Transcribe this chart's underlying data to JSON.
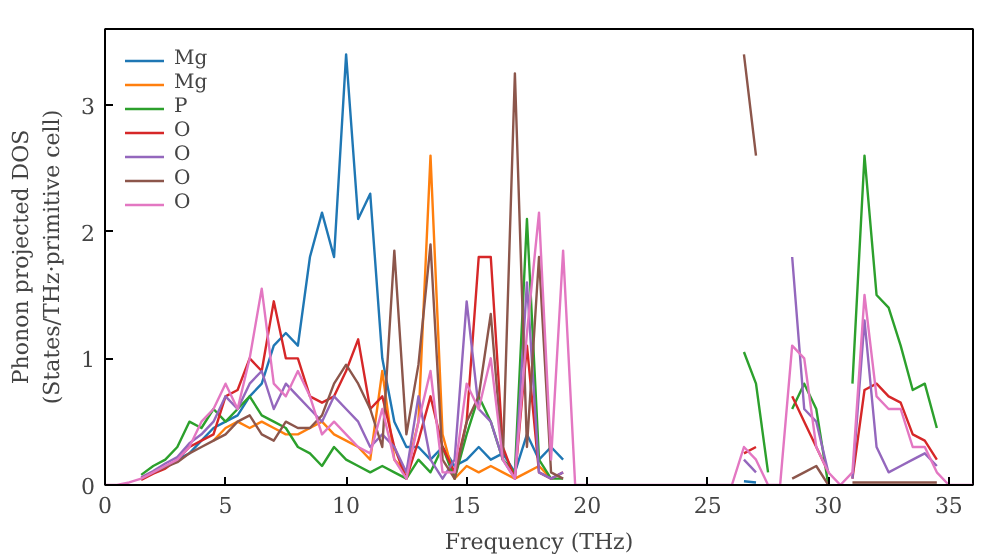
{
  "chart_data": {
    "type": "line",
    "xlabel": "Frequency (THz)",
    "ylabel": "Phonon projected DOS\n(States/THz·primitive cell)",
    "x": [
      0,
      0.5,
      1,
      1.5,
      2,
      2.5,
      3,
      3.5,
      4,
      4.5,
      5,
      5.5,
      6,
      6.5,
      7,
      7.5,
      8,
      8.5,
      9,
      9.5,
      10,
      10.5,
      11,
      11.5,
      12,
      12.5,
      13,
      13.5,
      14,
      14.5,
      15,
      15.5,
      16,
      16.5,
      17,
      17.5,
      18,
      18.5,
      19,
      19.5,
      20,
      20.5,
      21,
      21.5,
      22,
      22.5,
      23,
      23.5,
      24,
      24.5,
      25,
      25.5,
      26,
      26.5,
      27,
      27.5,
      28,
      28.5,
      29,
      29.5,
      30,
      30.5,
      31,
      31.5,
      32,
      32.5,
      33,
      33.5,
      34,
      34.5,
      35,
      35.5,
      36
    ],
    "xlim": [
      0,
      36
    ],
    "ylim": [
      0,
      3.6
    ],
    "xticks": [
      0,
      5,
      10,
      15,
      20,
      25,
      30,
      35
    ],
    "yticks": [
      0,
      1,
      2,
      3
    ],
    "legend": "top left",
    "grid": false,
    "series": [
      {
        "name": "Mg",
        "color": "#1f77b4",
        "values": [
          null,
          null,
          null,
          null,
          null,
          null,
          0.2,
          0.25,
          0.35,
          0.45,
          0.5,
          0.55,
          0.7,
          0.8,
          1.1,
          1.2,
          1.1,
          1.8,
          2.15,
          1.8,
          3.4,
          2.1,
          2.3,
          1.0,
          0.5,
          0.3,
          0.3,
          0.2,
          0.3,
          0.15,
          0.2,
          0.3,
          0.2,
          0.25,
          0.1,
          0.4,
          0.2,
          0.3,
          0.2,
          null,
          null,
          null,
          null,
          null,
          null,
          null,
          null,
          null,
          null,
          null,
          null,
          null,
          null,
          0.03,
          0.02,
          null,
          null,
          null,
          null,
          null,
          null,
          null,
          null,
          null,
          null,
          null,
          null,
          null,
          null,
          null,
          null,
          null,
          null
        ]
      },
      {
        "name": "Mg",
        "color": "#ff7f0e",
        "values": [
          null,
          null,
          null,
          null,
          null,
          null,
          null,
          null,
          null,
          0.35,
          0.45,
          0.5,
          0.45,
          0.5,
          0.45,
          0.4,
          0.4,
          0.45,
          0.5,
          0.4,
          0.35,
          0.3,
          0.2,
          0.9,
          0.2,
          0.1,
          0.5,
          2.6,
          0.4,
          0.05,
          0.15,
          0.1,
          0.15,
          0.1,
          0.05,
          0.1,
          0.15,
          0.05,
          null,
          null,
          null,
          null,
          null,
          null,
          null,
          null,
          null,
          null,
          null,
          null,
          null,
          null,
          null,
          null,
          null,
          null,
          null,
          null,
          null,
          null,
          null,
          null,
          null,
          null,
          null,
          null,
          null,
          null,
          null,
          null,
          null,
          null,
          null
        ]
      },
      {
        "name": "P",
        "color": "#2ca02c",
        "values": [
          null,
          null,
          null,
          0.08,
          0.15,
          0.2,
          0.3,
          0.5,
          0.45,
          0.6,
          0.5,
          0.6,
          0.7,
          0.55,
          0.5,
          0.45,
          0.3,
          0.25,
          0.15,
          0.3,
          0.2,
          0.15,
          0.1,
          0.15,
          0.1,
          0.05,
          0.2,
          0.1,
          0.3,
          0.05,
          0.4,
          0.7,
          0.5,
          0.2,
          0.1,
          2.1,
          0.2,
          0.05,
          0.05,
          null,
          null,
          null,
          null,
          null,
          null,
          null,
          null,
          null,
          null,
          null,
          null,
          null,
          null,
          1.05,
          0.8,
          0.1,
          null,
          0.6,
          0.8,
          0.6,
          0,
          null,
          0.8,
          2.6,
          1.5,
          1.4,
          1.1,
          0.75,
          0.8,
          0.45,
          null,
          null,
          null
        ]
      },
      {
        "name": "O",
        "color": "#d62728",
        "values": [
          null,
          null,
          null,
          0.04,
          0.09,
          0.13,
          0.2,
          0.3,
          0.35,
          0.4,
          0.7,
          0.75,
          1.0,
          0.9,
          1.45,
          1.0,
          1.0,
          0.7,
          0.65,
          0.7,
          0.9,
          1.15,
          0.6,
          0.7,
          0.3,
          0.05,
          0.35,
          0.7,
          0.3,
          0.1,
          0.5,
          1.8,
          1.8,
          0.3,
          0.05,
          1.1,
          0.1,
          0.05,
          0.1,
          null,
          null,
          null,
          null,
          null,
          null,
          null,
          null,
          null,
          null,
          null,
          null,
          null,
          null,
          0.25,
          0.3,
          null,
          null,
          0.7,
          0.5,
          0.3,
          0.1,
          null,
          0.05,
          0.75,
          0.8,
          0.7,
          0.65,
          0.4,
          0.35,
          0.2,
          null,
          null,
          null
        ]
      },
      {
        "name": "O",
        "color": "#9467bd",
        "values": [
          null,
          null,
          null,
          0.06,
          0.11,
          0.17,
          0.22,
          0.33,
          0.4,
          0.5,
          0.7,
          0.6,
          0.8,
          0.9,
          0.6,
          0.8,
          0.7,
          0.6,
          0.5,
          0.7,
          0.6,
          0.5,
          0.3,
          0.4,
          0.3,
          0.1,
          0.7,
          0.2,
          0.05,
          0.2,
          1.45,
          0.6,
          0.5,
          0.2,
          0.05,
          1.6,
          0.1,
          0.05,
          0.1,
          null,
          null,
          null,
          null,
          null,
          null,
          null,
          null,
          null,
          null,
          null,
          null,
          null,
          null,
          0.2,
          0.1,
          null,
          null,
          1.8,
          0.6,
          0.5,
          0.1,
          null,
          0.05,
          1.3,
          0.3,
          0.1,
          0.15,
          0.2,
          0.25,
          0.15,
          null,
          null,
          null
        ]
      },
      {
        "name": "O",
        "color": "#8c564b",
        "values": [
          null,
          null,
          null,
          0.05,
          0.1,
          0.14,
          0.18,
          0.25,
          0.3,
          0.35,
          0.4,
          0.5,
          0.55,
          0.4,
          0.35,
          0.5,
          0.45,
          0.45,
          0.55,
          0.8,
          0.95,
          0.8,
          0.6,
          0.3,
          1.85,
          0.4,
          0.95,
          1.9,
          0.2,
          0.05,
          0.5,
          0.7,
          1.35,
          0.2,
          3.25,
          0.3,
          1.8,
          0.1,
          0.05,
          null,
          null,
          null,
          null,
          null,
          null,
          null,
          null,
          null,
          null,
          null,
          null,
          null,
          null,
          3.4,
          2.6,
          null,
          null,
          0.05,
          0.1,
          0.15,
          0,
          null,
          0.02,
          0.02,
          0.02,
          0.02,
          0.02,
          0.02,
          0.02,
          0.02,
          null,
          null,
          null
        ]
      },
      {
        "name": "O",
        "color": "#e377c2",
        "values": [
          0,
          0,
          0.02,
          0.05,
          0.1,
          0.15,
          0.2,
          0.3,
          0.5,
          0.6,
          0.8,
          0.6,
          1.0,
          1.55,
          0.8,
          0.7,
          0.9,
          0.7,
          0.4,
          0.5,
          0.4,
          0.3,
          0.25,
          0.6,
          0.2,
          0.05,
          0.5,
          0.9,
          0.1,
          0.1,
          0.8,
          0.6,
          1.0,
          0.2,
          0.05,
          1.2,
          2.15,
          0.2,
          1.85,
          0,
          0,
          0,
          0,
          0,
          0,
          0,
          0,
          0,
          0,
          0,
          0,
          0,
          0,
          0.3,
          0.2,
          0,
          0,
          1.1,
          1.0,
          0.3,
          0.1,
          0,
          0.1,
          1.5,
          0.7,
          0.6,
          0.6,
          0.3,
          0.3,
          0.1,
          0,
          0,
          0
        ]
      }
    ]
  }
}
